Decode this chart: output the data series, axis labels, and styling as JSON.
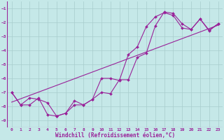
{
  "xlabel": "Windchill (Refroidissement éolien,°C)",
  "background_color": "#c5e8e8",
  "line_color": "#992299",
  "grid_color": "#a8cccc",
  "xlim": [
    -0.5,
    23.5
  ],
  "ylim": [
    -9.5,
    -0.5
  ],
  "yticks": [
    -9,
    -8,
    -7,
    -6,
    -5,
    -4,
    -3,
    -2,
    -1
  ],
  "xticks": [
    0,
    1,
    2,
    3,
    4,
    5,
    6,
    7,
    8,
    9,
    10,
    11,
    12,
    13,
    14,
    15,
    16,
    17,
    18,
    19,
    20,
    21,
    22,
    23
  ],
  "line1_x": [
    0,
    1,
    2,
    3,
    4,
    5,
    6,
    7,
    8,
    9,
    10,
    11,
    12,
    13,
    14,
    15,
    16,
    17,
    18,
    19,
    20,
    21,
    22,
    23
  ],
  "line1_y": [
    -7.0,
    -7.9,
    -7.9,
    -7.4,
    -8.6,
    -8.7,
    -8.5,
    -7.9,
    -7.9,
    -7.5,
    -7.0,
    -7.1,
    -6.1,
    -6.1,
    -4.5,
    -4.2,
    -2.25,
    -1.25,
    -1.35,
    -2.1,
    -2.5,
    -1.75,
    -2.6,
    -2.1
  ],
  "line2_x": [
    0,
    1,
    2,
    3,
    4,
    5,
    6,
    7,
    8,
    9,
    10,
    11,
    12,
    13,
    14,
    15,
    16,
    17,
    18,
    19,
    20,
    21,
    22,
    23
  ],
  "line2_y": [
    -7.0,
    -7.9,
    -7.4,
    -7.5,
    -7.75,
    -8.7,
    -8.5,
    -7.6,
    -7.9,
    -7.5,
    -6.0,
    -6.0,
    -6.15,
    -4.3,
    -3.75,
    -2.3,
    -1.6,
    -1.3,
    -1.5,
    -2.4,
    -2.5,
    -1.75,
    -2.55,
    -2.1
  ],
  "line3_x": [
    0,
    23
  ],
  "line3_y": [
    -7.7,
    -2.2
  ],
  "tick_fontsize": 4.5,
  "xlabel_fontsize": 5.5,
  "marker_size": 2.0,
  "linewidth": 0.8
}
